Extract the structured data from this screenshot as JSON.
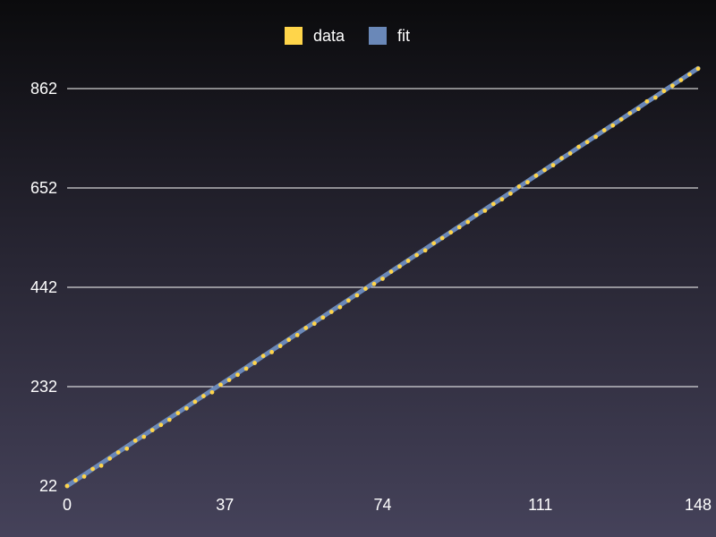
{
  "chart_data": {
    "type": "scatter",
    "title": "",
    "xlabel": "",
    "ylabel": "",
    "xlim": [
      0,
      148
    ],
    "ylim": [
      22,
      862
    ],
    "x_ticks": [
      0,
      37,
      74,
      111,
      148
    ],
    "y_ticks": [
      22,
      232,
      442,
      652,
      862
    ],
    "grid": "horizontal",
    "legend_position": "top-center",
    "legend": [
      {
        "label": "data",
        "color": "#ffd54a"
      },
      {
        "label": "fit",
        "color": "#6a88b8"
      }
    ],
    "series": [
      {
        "name": "data",
        "kind": "points",
        "color": "#ffd54a",
        "x": [
          0,
          2,
          4,
          6,
          8,
          10,
          12,
          14,
          16,
          18,
          20,
          22,
          24,
          26,
          28,
          30,
          32,
          34,
          36,
          38,
          40,
          42,
          44,
          46,
          48,
          50,
          52,
          54,
          56,
          58,
          60,
          62,
          64,
          66,
          68,
          70,
          72,
          74,
          76,
          78,
          80,
          82,
          84,
          86,
          88,
          90,
          92,
          94,
          96,
          98,
          100,
          102,
          104,
          106,
          108,
          110,
          112,
          114,
          116,
          118,
          120,
          122,
          124,
          126,
          128,
          130,
          132,
          134,
          136,
          138,
          140,
          142,
          144,
          146,
          148
        ],
        "y": [
          22,
          34,
          42,
          58,
          65,
          80,
          93,
          101,
          118,
          126,
          140,
          151,
          162,
          176,
          186,
          200,
          212,
          220,
          236,
          246,
          257,
          270,
          282,
          297,
          305,
          318,
          331,
          341,
          356,
          365,
          378,
          390,
          400,
          414,
          425,
          439,
          449,
          460,
          475,
          486,
          498,
          510,
          520,
          535,
          546,
          558,
          569,
          580,
          595,
          604,
          618,
          628,
          640,
          655,
          664,
          678,
          690,
          700,
          715,
          725,
          739,
          749,
          760,
          774,
          784,
          797,
          810,
          819,
          835,
          843,
          857,
          868,
          880,
          892,
          904
        ]
      },
      {
        "name": "fit",
        "kind": "line",
        "color": "#6a88b8",
        "x": [
          0,
          148
        ],
        "y": [
          22,
          905
        ]
      }
    ]
  }
}
